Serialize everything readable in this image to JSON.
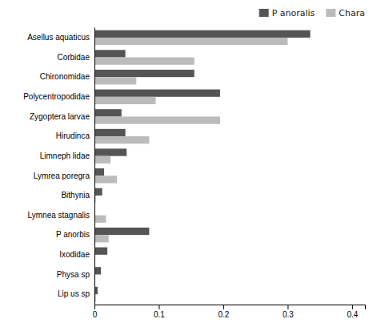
{
  "chart_data": {
    "type": "bar",
    "orientation": "horizontal",
    "categories": [
      "Asellus aquaticus",
      "Corbidae",
      "Chironomidae",
      "Polycentropodidae",
      "Zygoptera larvae",
      "Hirudinca",
      "Limneph lidae",
      "Lymrea poregra",
      "Bithynia",
      "Lymnea stagnalis",
      "P anorbis",
      "Ixodidae",
      "Physa  sp",
      "Lip us sp"
    ],
    "series": [
      {
        "name": "P anoralis",
        "color": "#555555",
        "values": [
          0.335,
          0.048,
          0.155,
          0.195,
          0.042,
          0.048,
          0.05,
          0.015,
          0.012,
          0.0,
          0.085,
          0.02,
          0.01,
          0.005
        ]
      },
      {
        "name": "Chara",
        "color": "#bbbbbb",
        "values": [
          0.3,
          0.155,
          0.065,
          0.095,
          0.195,
          0.085,
          0.025,
          0.035,
          0.002,
          0.018,
          0.022,
          0.0,
          0.0,
          0.002
        ]
      }
    ],
    "xlim": [
      0,
      0.42
    ],
    "xticks": [
      0,
      0.1,
      0.2,
      0.3,
      0.4
    ],
    "grid": false,
    "legend": "upper right"
  }
}
